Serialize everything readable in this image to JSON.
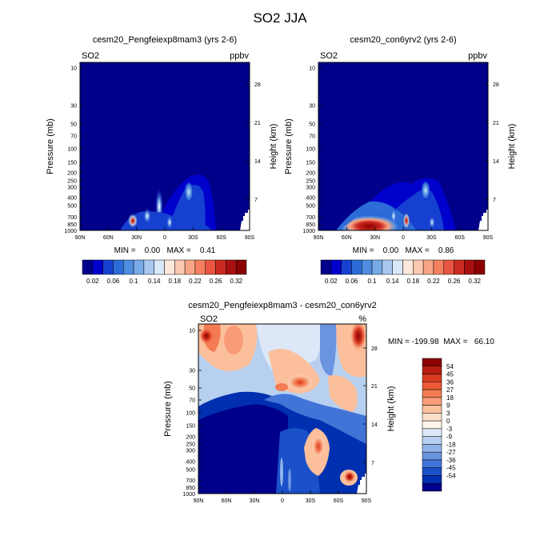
{
  "page_title": "SO2 JJA",
  "colors": {
    "background_low": "#00008b",
    "positive_high": "#8b0000"
  },
  "chart_data": [
    {
      "id": "top-left",
      "type": "heatmap",
      "title": "cesm20_Pengfeiexp8mam3 (yrs 2-6)",
      "variable_label": "SO2",
      "units_label": "ppbv",
      "ylabel_left": "Pressure (mb)",
      "ylabel_right": "Height (km)",
      "x_ticks": [
        "90N",
        "60N",
        "30N",
        "0",
        "30S",
        "60S",
        "90S"
      ],
      "y_ticks_left": [
        "10",
        "30",
        "50",
        "70",
        "100",
        "150",
        "200",
        "250",
        "300",
        "400",
        "500",
        "700",
        "850",
        "1000"
      ],
      "y_ticks_right": [
        "28",
        "21",
        "14",
        "7"
      ],
      "stats_text": "MIN =    0.00   MAX =    0.41",
      "colorbar": {
        "orientation": "horizontal",
        "labels": [
          "0.02",
          "0.06",
          "0.1",
          "0.14",
          "0.18",
          "0.22",
          "0.26",
          "0.32"
        ],
        "colors": [
          "#00008b",
          "#0000cd",
          "#1540d0",
          "#2b6cd8",
          "#4f8de0",
          "#78aae8",
          "#a8c8f0",
          "#d8e8f8",
          "#fde8dc",
          "#fbc8b0",
          "#f8a585",
          "#f48060",
          "#e85540",
          "#cc2a20",
          "#a81010",
          "#8b0000"
        ]
      },
      "features": [
        {
          "name": "surface-source-30N",
          "lat": 33,
          "p": [
            700,
            1000
          ],
          "value": 0.41
        },
        {
          "name": "plume-30S",
          "lat": -28,
          "p": [
            200,
            500
          ],
          "value": 0.12
        },
        {
          "name": "plume-10N",
          "lat": 8,
          "p": [
            400,
            1000
          ],
          "value": 0.1
        }
      ]
    },
    {
      "id": "top-right",
      "type": "heatmap",
      "title": "cesm20_con6yrv2 (yrs 2-6)",
      "variable_label": "SO2",
      "units_label": "ppbv",
      "ylabel_left": "Pressure (mb)",
      "ylabel_right": "Height (km)",
      "x_ticks": [
        "90N",
        "60N",
        "30N",
        "0",
        "30S",
        "60S",
        "90S"
      ],
      "y_ticks_left": [
        "10",
        "30",
        "50",
        "70",
        "100",
        "150",
        "200",
        "250",
        "300",
        "400",
        "500",
        "700",
        "850",
        "1000"
      ],
      "y_ticks_right": [
        "28",
        "21",
        "14",
        "7"
      ],
      "stats_text": "MIN =    0.00   MAX =    0.86",
      "colorbar": {
        "orientation": "horizontal",
        "labels": [
          "0.02",
          "0.06",
          "0.1",
          "0.14",
          "0.18",
          "0.22",
          "0.26",
          "0.32"
        ],
        "colors": [
          "#00008b",
          "#0000cd",
          "#1540d0",
          "#2b6cd8",
          "#4f8de0",
          "#78aae8",
          "#a8c8f0",
          "#d8e8f8",
          "#fde8dc",
          "#fbc8b0",
          "#f8a585",
          "#f48060",
          "#e85540",
          "#cc2a20",
          "#a81010",
          "#8b0000"
        ]
      },
      "features": [
        {
          "name": "surface-source-30N",
          "lat": 30,
          "p": [
            650,
            1000
          ],
          "value": 0.86
        },
        {
          "name": "plume-30S",
          "lat": -28,
          "p": [
            200,
            500
          ],
          "value": 0.1
        },
        {
          "name": "plume-5N",
          "lat": 5,
          "p": [
            400,
            1000
          ],
          "value": 0.22
        }
      ]
    },
    {
      "id": "bottom",
      "type": "heatmap",
      "title": "cesm20_Pengfeiexp8mam3 - cesm20_con6yrv2",
      "variable_label": "SO2",
      "units_label": "%",
      "ylabel_left": "Pressure (mb)",
      "ylabel_right": "Height (km)",
      "x_ticks": [
        "90N",
        "60N",
        "30N",
        "0",
        "30S",
        "60S",
        "90S"
      ],
      "y_ticks_left": [
        "10",
        "30",
        "50",
        "70",
        "100",
        "150",
        "200",
        "250",
        "300",
        "400",
        "500",
        "700",
        "850",
        "1000"
      ],
      "y_ticks_right": [
        "28",
        "21",
        "14",
        "7"
      ],
      "stats_text": "MIN = -199.98  MAX =   66.10",
      "colorbar": {
        "orientation": "vertical",
        "labels": [
          "54",
          "45",
          "36",
          "27",
          "18",
          "9",
          "3",
          "0",
          "-3",
          "-9",
          "-18",
          "-27",
          "-36",
          "-45",
          "-54"
        ],
        "colors": [
          "#8b0000",
          "#b81e10",
          "#d83a20",
          "#ee5a38",
          "#f47c52",
          "#f89c78",
          "#fbbf9c",
          "#fde0cc",
          "#fff4ec",
          "#dce8f8",
          "#b8d0f0",
          "#90b4e8",
          "#6a94e0",
          "#4274d8",
          "#1a50c8",
          "#0030b0",
          "#00008b"
        ]
      },
      "features": [
        {
          "name": "strat-north-positive",
          "lat": 85,
          "p": [
            10,
            15
          ],
          "value": 54
        },
        {
          "name": "strat-south-positive",
          "lat": -85,
          "p": [
            10,
            15
          ],
          "value": 54
        },
        {
          "name": "upper-trop-positive-30S",
          "lat": -40,
          "p": [
            200,
            400
          ],
          "value": 36
        },
        {
          "name": "lower-trop-positive-60S",
          "lat": -65,
          "p": [
            650,
            800
          ],
          "value": 54
        },
        {
          "name": "lower-region-negative",
          "lat": 30,
          "p": [
            100,
            1000
          ],
          "value": -54
        }
      ]
    }
  ]
}
